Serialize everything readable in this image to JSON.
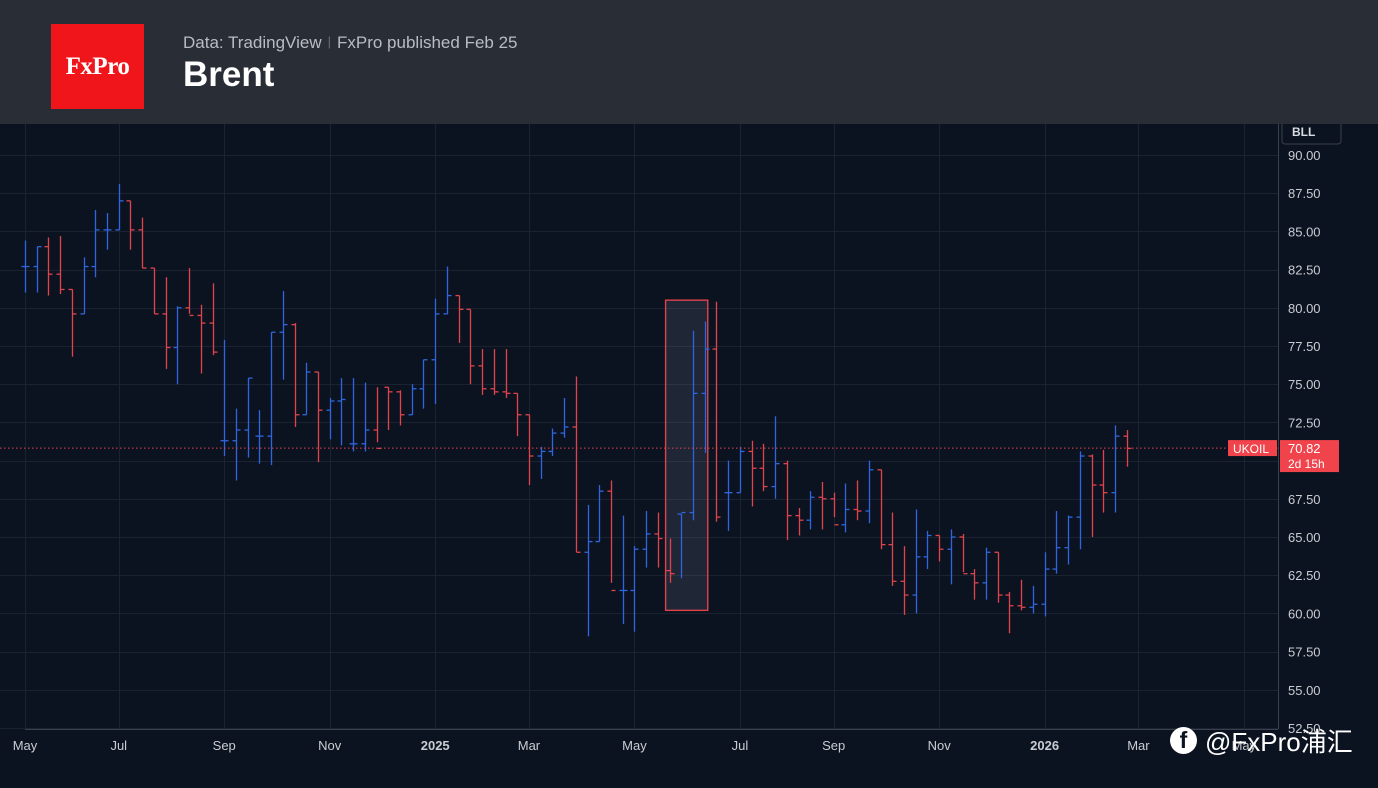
{
  "header": {
    "logo_text": "FxPro",
    "source_text": "Data: TradingView",
    "published_text": "FxPro published Feb 25",
    "title": "Brent"
  },
  "watermark": {
    "icon": "facebook-icon",
    "text": "@FxPro浦汇"
  },
  "colors": {
    "up": "#2f65e0",
    "down": "#e0434b",
    "background": "#0c1320",
    "header": "#292d36",
    "grid": "#1b2330",
    "label_bg": "#f0434c"
  },
  "chart_data": {
    "type": "ohlc",
    "title": "Brent",
    "symbol_badge": "BLL",
    "price_label": {
      "symbol": "UKOIL",
      "value": "70.82",
      "countdown": "2d 15h"
    },
    "current_price": 70.82,
    "ylim": [
      52.5,
      91
    ],
    "y_ticks": [
      90.0,
      87.5,
      85.0,
      82.5,
      80.0,
      77.5,
      75.0,
      72.5,
      70.0,
      67.5,
      65.0,
      62.5,
      60.0,
      57.5,
      55.0,
      52.5
    ],
    "y_tick_labels": [
      "90.00",
      "87.50",
      "85.00",
      "82.50",
      "80.00",
      "77.50",
      "75.00",
      "72.50",
      "70.00",
      "67.50",
      "65.00",
      "62.50",
      "60.00",
      "57.50",
      "55.00",
      "52.50"
    ],
    "x_ticks": [
      {
        "label": "May",
        "week": 0
      },
      {
        "label": "Jul",
        "week": 8
      },
      {
        "label": "Sep",
        "week": 17
      },
      {
        "label": "Nov",
        "week": 26
      },
      {
        "label": "2025",
        "week": 35,
        "bold": true
      },
      {
        "label": "Mar",
        "week": 43
      },
      {
        "label": "May",
        "week": 52
      },
      {
        "label": "Jul",
        "week": 61
      },
      {
        "label": "Sep",
        "week": 69
      },
      {
        "label": "Nov",
        "week": 78
      },
      {
        "label": "2026",
        "week": 87,
        "bold": true
      },
      {
        "label": "Mar",
        "week": 95
      },
      {
        "label": "May",
        "week": 104
      }
    ],
    "highlight": {
      "from_week": 55,
      "to_week": 58,
      "low": 60.2,
      "high": 80.5
    },
    "bars": [
      [
        82.7,
        84.4,
        81.0,
        82.7
      ],
      [
        82.7,
        84.0,
        81.0,
        84.0
      ],
      [
        84.0,
        84.6,
        80.8,
        82.2
      ],
      [
        82.2,
        84.7,
        80.9,
        81.2
      ],
      [
        81.2,
        81.2,
        76.8,
        79.6
      ],
      [
        79.6,
        83.3,
        79.6,
        82.7
      ],
      [
        82.7,
        86.4,
        82.0,
        85.1
      ],
      [
        85.1,
        86.2,
        83.8,
        85.1
      ],
      [
        85.1,
        88.1,
        85.1,
        87.0
      ],
      [
        87.0,
        87.0,
        83.8,
        85.1
      ],
      [
        85.1,
        85.9,
        82.6,
        82.6
      ],
      [
        82.6,
        82.6,
        79.6,
        79.6
      ],
      [
        79.6,
        82.0,
        76.0,
        77.4
      ],
      [
        77.4,
        80.1,
        75.0,
        80.0
      ],
      [
        80.0,
        82.6,
        79.6,
        79.5
      ],
      [
        79.5,
        80.2,
        75.7,
        79.0
      ],
      [
        79.0,
        81.6,
        76.9,
        77.1
      ],
      [
        71.3,
        77.9,
        70.3,
        71.3
      ],
      [
        71.3,
        73.4,
        68.7,
        72.0
      ],
      [
        72.0,
        75.4,
        70.2,
        75.4
      ],
      [
        71.6,
        73.3,
        69.8,
        71.6
      ],
      [
        71.6,
        78.4,
        69.7,
        78.4
      ],
      [
        78.4,
        81.1,
        75.3,
        78.9
      ],
      [
        78.9,
        79.0,
        72.2,
        73.0
      ],
      [
        73.0,
        76.4,
        73.0,
        75.8
      ],
      [
        75.8,
        75.8,
        69.9,
        73.3
      ],
      [
        73.3,
        74.1,
        71.4,
        73.9
      ],
      [
        73.9,
        75.4,
        71.0,
        74.0
      ],
      [
        71.1,
        75.4,
        70.6,
        71.1
      ],
      [
        71.1,
        75.1,
        70.6,
        72.0
      ],
      [
        72.0,
        74.8,
        71.2,
        70.8
      ],
      [
        74.8,
        74.8,
        72.0,
        74.5
      ],
      [
        74.5,
        74.6,
        72.3,
        73.0
      ],
      [
        73.0,
        75.0,
        73.0,
        74.7
      ],
      [
        74.7,
        76.6,
        73.4,
        76.6
      ],
      [
        76.6,
        80.6,
        73.7,
        79.6
      ],
      [
        79.6,
        82.7,
        79.6,
        80.8
      ],
      [
        80.8,
        80.8,
        77.7,
        79.9
      ],
      [
        79.9,
        79.9,
        75.0,
        76.2
      ],
      [
        76.2,
        77.3,
        74.3,
        74.7
      ],
      [
        74.7,
        77.3,
        74.3,
        74.5
      ],
      [
        74.5,
        77.3,
        74.1,
        74.4
      ],
      [
        74.4,
        74.4,
        71.6,
        73.0
      ],
      [
        73.0,
        73.0,
        68.4,
        70.3
      ],
      [
        70.3,
        70.9,
        68.8,
        70.6
      ],
      [
        70.6,
        72.1,
        70.3,
        71.8
      ],
      [
        71.8,
        74.1,
        71.5,
        72.2
      ],
      [
        72.2,
        75.5,
        64.0,
        64.0
      ],
      [
        64.0,
        67.1,
        58.5,
        64.7
      ],
      [
        64.7,
        68.4,
        64.7,
        68.0
      ],
      [
        68.0,
        68.7,
        62.0,
        61.5
      ],
      [
        61.5,
        66.4,
        59.3,
        61.5
      ],
      [
        61.5,
        64.4,
        58.8,
        64.2
      ],
      [
        64.2,
        66.7,
        63.0,
        65.2
      ],
      [
        65.2,
        66.6,
        63.0,
        64.9
      ],
      [
        62.8,
        64.9,
        62.0,
        62.6
      ],
      [
        66.5,
        66.5,
        62.3,
        66.6
      ],
      [
        66.6,
        78.5,
        66.1,
        74.4
      ],
      [
        74.4,
        79.1,
        70.5,
        77.3
      ],
      [
        77.3,
        80.4,
        66.0,
        66.3
      ],
      [
        67.9,
        70.0,
        65.4,
        67.9
      ],
      [
        67.9,
        70.9,
        67.9,
        70.6
      ],
      [
        70.6,
        71.3,
        67.0,
        69.5
      ],
      [
        69.5,
        71.1,
        68.0,
        68.3
      ],
      [
        68.3,
        72.9,
        67.5,
        69.8
      ],
      [
        69.8,
        70.0,
        64.8,
        66.4
      ],
      [
        66.4,
        66.9,
        65.1,
        66.1
      ],
      [
        66.1,
        68.0,
        65.5,
        67.6
      ],
      [
        67.6,
        68.6,
        65.5,
        67.5
      ],
      [
        67.5,
        67.9,
        66.3,
        65.8
      ],
      [
        65.8,
        68.5,
        65.3,
        66.8
      ],
      [
        66.8,
        68.7,
        66.1,
        66.7
      ],
      [
        66.7,
        70.0,
        65.9,
        69.4
      ],
      [
        69.4,
        69.4,
        64.2,
        64.5
      ],
      [
        64.5,
        66.6,
        61.8,
        62.1
      ],
      [
        62.1,
        64.4,
        59.9,
        61.2
      ],
      [
        61.2,
        66.8,
        60.0,
        63.7
      ],
      [
        63.7,
        65.4,
        62.9,
        65.1
      ],
      [
        65.1,
        65.1,
        63.4,
        64.2
      ],
      [
        64.2,
        65.5,
        61.9,
        65.0
      ],
      [
        65.0,
        65.2,
        62.7,
        62.6
      ],
      [
        62.6,
        62.9,
        60.9,
        62.0
      ],
      [
        62.0,
        64.3,
        60.9,
        64.0
      ],
      [
        64.0,
        64.0,
        60.7,
        61.2
      ],
      [
        61.2,
        61.4,
        58.7,
        60.5
      ],
      [
        60.5,
        62.2,
        60.2,
        60.4
      ],
      [
        60.4,
        61.8,
        60.0,
        60.6
      ],
      [
        60.6,
        64.0,
        59.8,
        62.9
      ],
      [
        62.9,
        66.7,
        62.6,
        64.3
      ],
      [
        64.3,
        66.4,
        63.2,
        66.3
      ],
      [
        66.3,
        70.6,
        64.2,
        70.3
      ],
      [
        70.3,
        70.4,
        65.0,
        68.4
      ],
      [
        68.4,
        70.7,
        66.6,
        67.9
      ],
      [
        67.9,
        72.3,
        66.6,
        71.6
      ],
      [
        71.6,
        72.0,
        69.6,
        70.8
      ]
    ]
  }
}
